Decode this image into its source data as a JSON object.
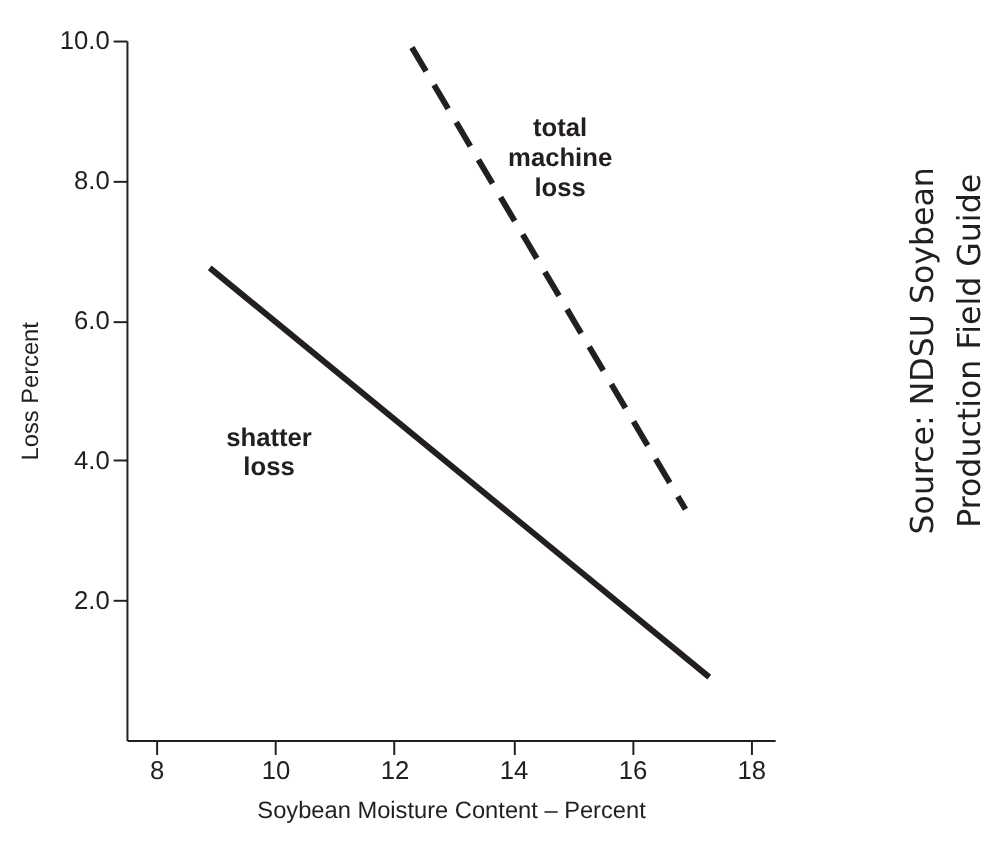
{
  "chart_data": {
    "type": "line",
    "xlabel": "Soybean Moisture Content – Percent",
    "ylabel": "Loss Percent",
    "xlim": [
      7.5,
      18.4
    ],
    "ylim": [
      0,
      10
    ],
    "xticks": [
      8,
      10,
      12,
      14,
      16,
      18
    ],
    "yticks": [
      {
        "value": 2,
        "label": "2.0"
      },
      {
        "value": 4,
        "label": "4.0"
      },
      {
        "value": 6,
        "label": "6.0"
      },
      {
        "value": 8,
        "label": "8.0"
      },
      {
        "value": 10,
        "label": "10.0"
      }
    ],
    "grid": false,
    "legend": false,
    "series": [
      {
        "name": "total machine loss",
        "color": "#231f20",
        "line_style": "dashed",
        "x": [
          12.3,
          16.9
        ],
        "values": [
          9.9,
          3.3
        ]
      },
      {
        "name": "shatter loss",
        "color": "#231f20",
        "line_style": "solid",
        "x": [
          8.9,
          17.3
        ],
        "values": [
          6.75,
          0.9
        ]
      }
    ],
    "annotations": [
      "Source: NDSU Soybean Production Field Guide"
    ]
  }
}
